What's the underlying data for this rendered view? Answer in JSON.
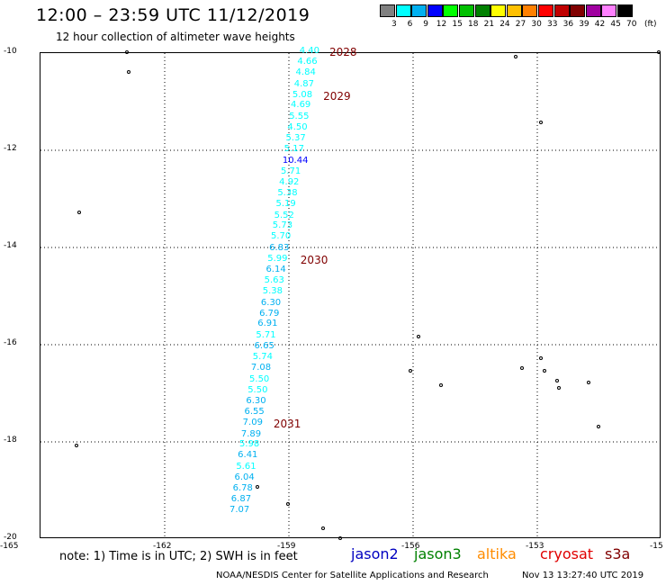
{
  "header": {
    "title": "12:00 – 23:59 UTC 11/12/2019",
    "subtitle": "12 hour collection of altimeter wave heights"
  },
  "colorbar": {
    "unit": "(ft)",
    "colors": [
      "#808080",
      "#00ffff",
      "#00b0f0",
      "#0000ff",
      "#00ff00",
      "#00c000",
      "#008000",
      "#ffff00",
      "#ffc000",
      "#ff8000",
      "#ff0000",
      "#c00000",
      "#800000",
      "#a000a0",
      "#ff80ff",
      "#000000"
    ],
    "labels": [
      "3",
      "6",
      "9",
      "12",
      "15",
      "18",
      "21",
      "24",
      "27",
      "30",
      "33",
      "36",
      "39",
      "42",
      "45",
      "70"
    ]
  },
  "axes": {
    "x_labels": [
      "-165",
      "-162",
      "-159",
      "-156",
      "-153",
      "-15"
    ],
    "y_labels": [
      "-10",
      "-12",
      "-14",
      "-16",
      "-18",
      "-20"
    ]
  },
  "track": {
    "points": [
      {
        "lat": -10.0,
        "lon": -158.55,
        "v": "4.40"
      },
      {
        "lat": -10.22,
        "lon": -158.6,
        "v": "4.66"
      },
      {
        "lat": -10.45,
        "lon": -158.64,
        "v": "4.84"
      },
      {
        "lat": -10.68,
        "lon": -158.68,
        "v": "4.87"
      },
      {
        "lat": -10.9,
        "lon": -158.72,
        "v": "5.08"
      },
      {
        "lat": -11.12,
        "lon": -158.76,
        "v": "4.69"
      },
      {
        "lat": -11.35,
        "lon": -158.8,
        "v": "5.55"
      },
      {
        "lat": -11.58,
        "lon": -158.84,
        "v": "4.50"
      },
      {
        "lat": -11.8,
        "lon": -158.88,
        "v": "5.37"
      },
      {
        "lat": -12.02,
        "lon": -158.92,
        "v": "5.17"
      },
      {
        "lat": -12.25,
        "lon": -158.96,
        "v": "10.44"
      },
      {
        "lat": -12.48,
        "lon": -159.0,
        "v": "5.71"
      },
      {
        "lat": -12.7,
        "lon": -159.04,
        "v": "4.92"
      },
      {
        "lat": -12.92,
        "lon": -159.08,
        "v": "5.38"
      },
      {
        "lat": -13.15,
        "lon": -159.12,
        "v": "5.19"
      },
      {
        "lat": -13.38,
        "lon": -159.16,
        "v": "5.52"
      },
      {
        "lat": -13.6,
        "lon": -159.2,
        "v": "5.73"
      },
      {
        "lat": -13.82,
        "lon": -159.24,
        "v": "5.70"
      },
      {
        "lat": -14.05,
        "lon": -159.28,
        "v": "6.83"
      },
      {
        "lat": -14.28,
        "lon": -159.32,
        "v": "5.99"
      },
      {
        "lat": -14.5,
        "lon": -159.36,
        "v": "6.14"
      },
      {
        "lat": -14.72,
        "lon": -159.4,
        "v": "5.63"
      },
      {
        "lat": -14.95,
        "lon": -159.44,
        "v": "5.38"
      },
      {
        "lat": -15.18,
        "lon": -159.48,
        "v": "6.30"
      },
      {
        "lat": -15.4,
        "lon": -159.52,
        "v": "6.79"
      },
      {
        "lat": -15.62,
        "lon": -159.56,
        "v": "6.91"
      },
      {
        "lat": -15.85,
        "lon": -159.6,
        "v": "5.71"
      },
      {
        "lat": -16.08,
        "lon": -159.64,
        "v": "6.65"
      },
      {
        "lat": -16.3,
        "lon": -159.68,
        "v": "5.74"
      },
      {
        "lat": -16.52,
        "lon": -159.72,
        "v": "7.08"
      },
      {
        "lat": -16.75,
        "lon": -159.76,
        "v": "5.50"
      },
      {
        "lat": -16.98,
        "lon": -159.8,
        "v": "5.50"
      },
      {
        "lat": -17.2,
        "lon": -159.84,
        "v": "6.30"
      },
      {
        "lat": -17.42,
        "lon": -159.88,
        "v": "6.55"
      },
      {
        "lat": -17.65,
        "lon": -159.92,
        "v": "7.09"
      },
      {
        "lat": -17.88,
        "lon": -159.96,
        "v": "7.89"
      },
      {
        "lat": -18.1,
        "lon": -160.0,
        "v": "5.98"
      },
      {
        "lat": -18.32,
        "lon": -160.04,
        "v": "6.41"
      },
      {
        "lat": -18.55,
        "lon": -160.08,
        "v": "5.61"
      },
      {
        "lat": -18.78,
        "lon": -160.12,
        "v": "6.04"
      },
      {
        "lat": -19.0,
        "lon": -160.16,
        "v": "6.78"
      },
      {
        "lat": -19.22,
        "lon": -160.2,
        "v": "6.87"
      },
      {
        "lat": -19.45,
        "lon": -160.24,
        "v": "7.07"
      }
    ],
    "time_labels": [
      {
        "lat": -10.0,
        "lon": -158.0,
        "t": "2028"
      },
      {
        "lat": -10.9,
        "lon": -158.15,
        "t": "2029"
      },
      {
        "lat": -14.28,
        "lon": -158.7,
        "t": "2030"
      },
      {
        "lat": -17.65,
        "lon": -159.35,
        "t": "2031"
      }
    ]
  },
  "islands": [
    {
      "lat": -10.0,
      "lon": -162.9
    },
    {
      "lat": -10.4,
      "lon": -162.85
    },
    {
      "lat": -13.3,
      "lon": -164.05
    },
    {
      "lat": -18.1,
      "lon": -164.1
    },
    {
      "lat": -18.95,
      "lon": -159.75
    },
    {
      "lat": -19.3,
      "lon": -159.0
    },
    {
      "lat": -19.8,
      "lon": -158.15
    },
    {
      "lat": -20.0,
      "lon": -157.75
    },
    {
      "lat": -10.1,
      "lon": -153.5
    },
    {
      "lat": -10.0,
      "lon": -150.05
    },
    {
      "lat": -11.45,
      "lon": -152.9
    },
    {
      "lat": -15.85,
      "lon": -155.85
    },
    {
      "lat": -16.55,
      "lon": -156.05
    },
    {
      "lat": -16.85,
      "lon": -155.3
    },
    {
      "lat": -16.3,
      "lon": -152.9
    },
    {
      "lat": -16.5,
      "lon": -153.35
    },
    {
      "lat": -16.55,
      "lon": -152.8
    },
    {
      "lat": -16.75,
      "lon": -152.5
    },
    {
      "lat": -16.9,
      "lon": -152.45
    },
    {
      "lat": -16.8,
      "lon": -151.75
    },
    {
      "lat": -17.7,
      "lon": -151.5
    }
  ],
  "satellites": [
    {
      "name": "jason2",
      "color": "#0000c0"
    },
    {
      "name": "jason3",
      "color": "#008000"
    },
    {
      "name": "altika",
      "color": "#ff8c00"
    },
    {
      "name": "cryosat",
      "color": "#e00000"
    },
    {
      "name": "s3a",
      "color": "#800000"
    }
  ],
  "note": "note:  1) Time is in UTC;  2) SWH is in feet",
  "credit": "NOAA/NESDIS Center for Satellite Applications and Research",
  "timestamp": "Nov 13 13:27:40 UTC 2019"
}
